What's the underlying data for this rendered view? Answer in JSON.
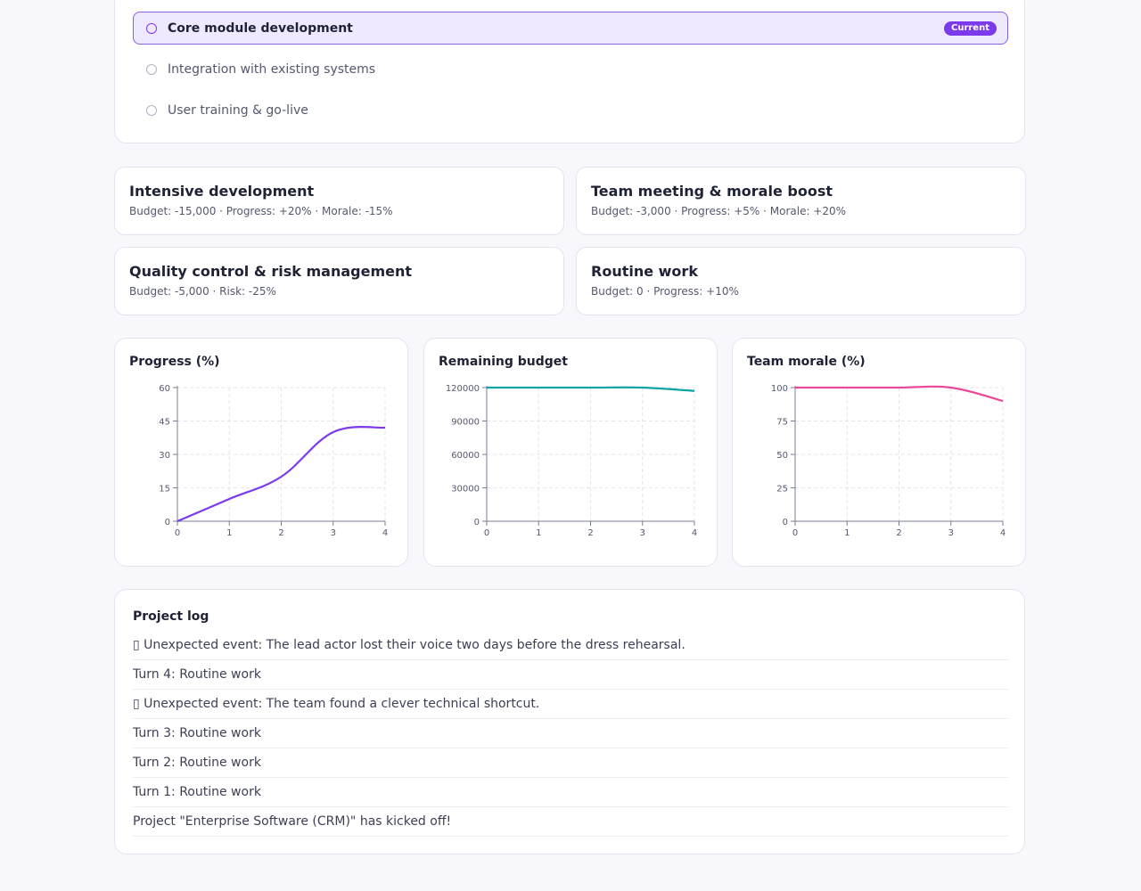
{
  "phases": [
    {
      "label": "Core module development",
      "current": true,
      "badge": "Current"
    },
    {
      "label": "Integration with existing systems",
      "current": false
    },
    {
      "label": "User training & go-live",
      "current": false
    }
  ],
  "actions": [
    {
      "title": "Intensive development",
      "meta": "Budget: -15,000 · Progress: +20% · Morale: -15%"
    },
    {
      "title": "Team meeting & morale boost",
      "meta": "Budget: -3,000 · Progress: +5% · Morale: +20%"
    },
    {
      "title": "Quality control & risk management",
      "meta": "Budget: -5,000 · Risk: -25%"
    },
    {
      "title": "Routine work",
      "meta": "Budget: 0 · Progress: +10%"
    }
  ],
  "chart_data": [
    {
      "type": "line",
      "title": "Progress (%)",
      "x": [
        0,
        1,
        2,
        3,
        4
      ],
      "y": [
        0,
        10,
        20,
        40,
        42
      ],
      "xlim": [
        0,
        4
      ],
      "ylim": [
        0,
        60
      ],
      "yticks": [
        0,
        15,
        30,
        45,
        60
      ],
      "color": "#7c3aed",
      "grid": true
    },
    {
      "type": "line",
      "title": "Remaining budget",
      "x": [
        0,
        1,
        2,
        3,
        4
      ],
      "y": [
        120000,
        120000,
        120000,
        120000,
        117000
      ],
      "xlim": [
        0,
        4
      ],
      "ylim": [
        0,
        120000
      ],
      "yticks": [
        0,
        30000,
        60000,
        90000,
        120000
      ],
      "color": "#0fa5a5",
      "grid": true
    },
    {
      "type": "line",
      "title": "Team morale (%)",
      "x": [
        0,
        1,
        2,
        3,
        4
      ],
      "y": [
        100,
        100,
        100,
        100,
        90
      ],
      "xlim": [
        0,
        4
      ],
      "ylim": [
        0,
        100
      ],
      "yticks": [
        0,
        25,
        50,
        75,
        100
      ],
      "color": "#ec4899",
      "grid": true
    }
  ],
  "log": {
    "title": "Project log",
    "entries": [
      "▯ Unexpected event: The lead actor lost their voice two days before the dress rehearsal.",
      "Turn 4: Routine work",
      "▯ Unexpected event: The team found a clever technical shortcut.",
      "Turn 3: Routine work",
      "Turn 2: Routine work",
      "Turn 1: Routine work",
      "Project \"Enterprise Software (CRM)\" has kicked off!"
    ]
  }
}
